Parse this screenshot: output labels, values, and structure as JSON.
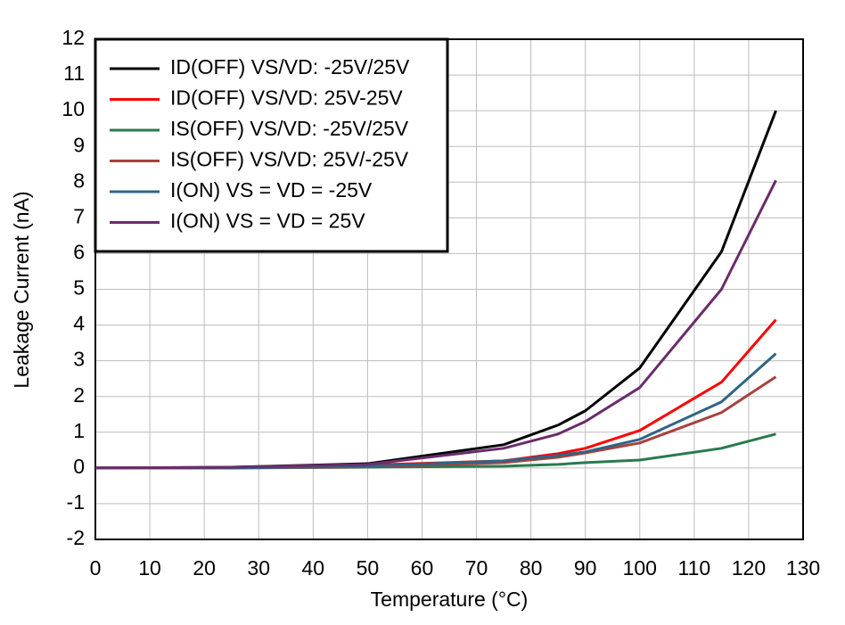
{
  "chart_data": {
    "type": "line",
    "x_label": "Temperature (°C)",
    "y_label": "Leakage Current (nA)",
    "x": [
      0,
      25,
      50,
      75,
      85,
      90,
      100,
      115,
      125
    ],
    "series": [
      {
        "name": "ID(OFF) VS/VD: -25V/25V",
        "color": "#000000",
        "values": [
          0,
          0.02,
          0.12,
          0.65,
          1.2,
          1.6,
          2.8,
          6.05,
          10
        ]
      },
      {
        "name": "ID(OFF) VS/VD: 25V-25V",
        "color": "#ff0000",
        "values": [
          0,
          0,
          0.08,
          0.2,
          0.4,
          0.55,
          1.05,
          2.4,
          4.15
        ]
      },
      {
        "name": "IS(OFF) VS/VD: -25V/25V",
        "color": "#2a7a4e",
        "values": [
          0,
          0,
          0.02,
          0.05,
          0.1,
          0.15,
          0.22,
          0.55,
          0.95
        ]
      },
      {
        "name": "IS(OFF) VS/VD: 25V/-25V",
        "color": "#a8413e",
        "values": [
          0,
          0,
          0.03,
          0.15,
          0.3,
          0.42,
          0.7,
          1.55,
          2.55
        ]
      },
      {
        "name": "I(ON) VS = VD = -25V",
        "color": "#2d6586",
        "values": [
          0,
          0,
          0.05,
          0.2,
          0.35,
          0.45,
          0.8,
          1.85,
          3.2
        ]
      },
      {
        "name": "I(ON) VS = VD = 25V",
        "color": "#6a2c6c",
        "values": [
          0,
          0.02,
          0.1,
          0.55,
          0.95,
          1.3,
          2.25,
          5,
          8.05
        ]
      }
    ],
    "xlim": [
      0,
      130
    ],
    "xticks": [
      0,
      10,
      20,
      30,
      40,
      50,
      60,
      70,
      80,
      90,
      100,
      110,
      120,
      130
    ],
    "ylim": [
      -2,
      12
    ],
    "yticks": [
      -2,
      -1,
      0,
      1,
      2,
      3,
      4,
      5,
      6,
      7,
      8,
      9,
      10,
      11,
      12
    ],
    "grid": true,
    "legend": "upper-left"
  }
}
